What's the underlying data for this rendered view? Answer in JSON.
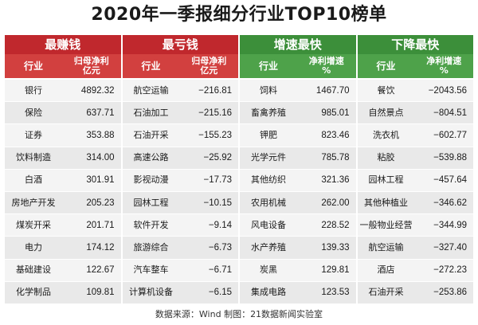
{
  "title": "2020年一季报细分行业TOP10榜单",
  "panels": [
    {
      "header": "最赚钱",
      "col1": "行业",
      "col2": "归母净利\n亿元",
      "rows": [
        {
          "name": "银行",
          "value": "4892.32"
        },
        {
          "name": "保险",
          "value": "637.71"
        },
        {
          "name": "证券",
          "value": "353.88"
        },
        {
          "name": "饮料制造",
          "value": "314.00"
        },
        {
          "name": "白酒",
          "value": "301.91"
        },
        {
          "name": "房地产开发",
          "value": "205.23"
        },
        {
          "name": "煤炭开采",
          "value": "201.71"
        },
        {
          "name": "电力",
          "value": "174.12"
        },
        {
          "name": "基础建设",
          "value": "122.67"
        },
        {
          "name": "化学制品",
          "value": "109.81"
        }
      ]
    },
    {
      "header": "最亏钱",
      "col1": "行业",
      "col2": "归母净利\n亿元",
      "rows": [
        {
          "name": "航空运输",
          "value": "−216.81"
        },
        {
          "name": "石油加工",
          "value": "−215.16"
        },
        {
          "name": "石油开采",
          "value": "−155.23"
        },
        {
          "name": "高速公路",
          "value": "−25.92"
        },
        {
          "name": "影视动漫",
          "value": "−17.73"
        },
        {
          "name": "园林工程",
          "value": "−10.15"
        },
        {
          "name": "软件开发",
          "value": "−9.14"
        },
        {
          "name": "旅游综合",
          "value": "−6.73"
        },
        {
          "name": "汽车整车",
          "value": "−6.71"
        },
        {
          "name": "计算机设备",
          "value": "−6.15"
        }
      ]
    },
    {
      "header": "增速最快",
      "col1": "行业",
      "col2": "净利增速\n%",
      "rows": [
        {
          "name": "饲料",
          "value": "1467.70"
        },
        {
          "name": "畜禽养殖",
          "value": "985.01"
        },
        {
          "name": "钾肥",
          "value": "823.46"
        },
        {
          "name": "光学元件",
          "value": "785.78"
        },
        {
          "name": "其他纺织",
          "value": "321.36"
        },
        {
          "name": "农用机械",
          "value": "262.00"
        },
        {
          "name": "风电设备",
          "value": "228.52"
        },
        {
          "name": "水产养殖",
          "value": "139.33"
        },
        {
          "name": "炭黑",
          "value": "129.81"
        },
        {
          "name": "集成电路",
          "value": "123.53"
        }
      ]
    },
    {
      "header": "下降最快",
      "col1": "行业",
      "col2": "净利增速\n%",
      "rows": [
        {
          "name": "餐饮",
          "value": "−2043.56"
        },
        {
          "name": "自然景点",
          "value": "−804.51"
        },
        {
          "name": "洗衣机",
          "value": "−602.77"
        },
        {
          "name": "粘胶",
          "value": "−539.88"
        },
        {
          "name": "园林工程",
          "value": "−457.64"
        },
        {
          "name": "其他种植业",
          "value": "−346.62"
        },
        {
          "name": "一般物业经营",
          "value": "−344.99"
        },
        {
          "name": "航空运输",
          "value": "−327.40"
        },
        {
          "name": "酒店",
          "value": "−272.23"
        },
        {
          "name": "石油开采",
          "value": "−253.86"
        }
      ]
    }
  ],
  "footer": "数据来源：Wind   制图：21数据新闻实验室",
  "colors": {
    "red_header": "#c0282d",
    "green_header": "#3c8f3a"
  }
}
